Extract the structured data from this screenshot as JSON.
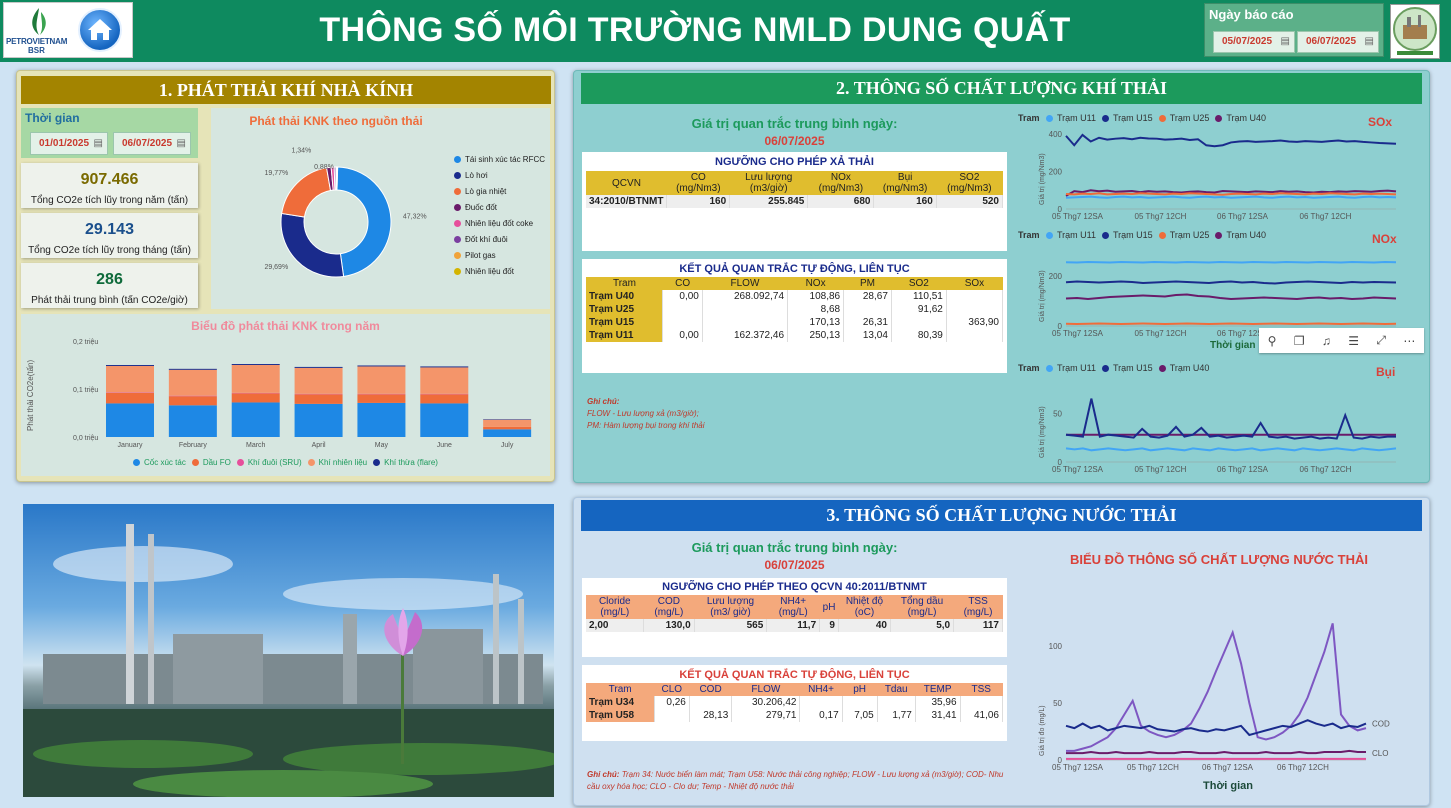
{
  "header": {
    "title": "THÔNG SỐ MÔI TRƯỜNG NMLD DUNG QUẤT",
    "logo_text_1": "PETROVIETNAM",
    "logo_text_2": "BSR",
    "report_date_label": "Ngày báo cáo",
    "date_from": "05/07/2025",
    "date_to": "06/07/2025"
  },
  "s1": {
    "title": "1. PHÁT THẢI KHÍ NHÀ KÍNH",
    "period_label": "Thời gian",
    "date_from": "01/01/2025",
    "date_to": "06/07/2025",
    "kpis": [
      {
        "value": "907.466",
        "label": "Tổng CO2e tích lũy trong năm (tấn)"
      },
      {
        "value": "29.143",
        "label": "Tổng CO2e tích lũy trong tháng (tấn)"
      },
      {
        "value": "286",
        "label": "Phát thải trung bình (tấn CO2e/giờ)"
      }
    ],
    "donut_title": "Phát thải KNK theo nguồn thải",
    "donut_legend": [
      "Tái sinh xúc tác RFCC",
      "Lò hơi",
      "Lò gia nhiệt",
      "Đuốc đốt",
      "Nhiên liệu đốt coke",
      "Đốt khí đuôi",
      "Pilot gas",
      "Nhiên liệu đốt"
    ],
    "bar_title": "Biểu đồ phát thải KNK trong năm",
    "bar_legend": [
      "Cốc xúc tác",
      "Dầu FO",
      "Khí đuôi (SRU)",
      "Khí nhiên liệu",
      "Khí thừa (flare)"
    ]
  },
  "s2": {
    "title": "2. THÔNG SỐ CHẤT LƯỢNG KHÍ THẢI",
    "avg_label": "Giá trị quan trắc trung bình ngày:",
    "avg_date": "06/07/2025",
    "limit_title": "NGƯỠNG CHO PHÉP XẢ THẢI",
    "limit_headers": [
      "QCVN",
      "CO (mg/Nm3)",
      "Lưu lượng (m3/giờ)",
      "NOx (mg/Nm3)",
      "Bụi (mg/Nm3)",
      "SO2 (mg/Nm3)"
    ],
    "limit_row": [
      "34:2010/BTNMT",
      "160",
      "255.845",
      "680",
      "160",
      "520"
    ],
    "result_title": "KẾT QUẢ QUAN TRẮC TỰ ĐỘNG, LIÊN TỤC",
    "result_headers": [
      "Tram",
      "CO",
      "FLOW",
      "NOx",
      "PM",
      "SO2",
      "SOx"
    ],
    "result_rows": [
      [
        "Trạm U40",
        "0,00",
        "268.092,74",
        "108,86",
        "28,67",
        "110,51",
        ""
      ],
      [
        "Trạm U25",
        "",
        "",
        "8,68",
        "",
        "91,62",
        ""
      ],
      [
        "Trạm U15",
        "",
        "",
        "170,13",
        "26,31",
        "",
        "363,90"
      ],
      [
        "Trạm U11",
        "0,00",
        "162.372,46",
        "250,13",
        "13,04",
        "80,39",
        ""
      ]
    ],
    "note_title": "Ghi chú:",
    "note_1": "FLOW - Lưu lượng xả (m3/giờ);",
    "note_2": "PM: Hàm lượng bụi trong khí thải",
    "legend_prefix": "Tram",
    "sox": {
      "title": "SOx",
      "legend": [
        "Trạm U11",
        "Trạm U15",
        "Trạm U25",
        "Trạm U40"
      ],
      "yticks": [
        "400",
        "200",
        "0"
      ],
      "xticks": [
        "05 Thg7 12SA",
        "05 Thg7 12CH",
        "06 Thg7 12SA",
        "06 Thg7 12CH"
      ]
    },
    "nox": {
      "title": "NOx",
      "legend": [
        "Trạm U11",
        "Trạm U15",
        "Trạm U25",
        "Trạm U40"
      ],
      "yticks": [
        "200",
        "0"
      ],
      "xticks": [
        "05 Thg7 12SA",
        "05 Thg7 12CH",
        "06 Thg7 12SA",
        "06 Thg7 12CH"
      ]
    },
    "pm": {
      "title": "Bụi",
      "legend": [
        "Trạm U11",
        "Trạm U15",
        "Trạm U40"
      ],
      "yticks": [
        "50",
        "0"
      ],
      "xticks": [
        "05 Thg7 12SA",
        "05 Thg7 12CH",
        "06 Thg7 12SA",
        "06 Thg7 12CH"
      ]
    },
    "y_label": "Giá trị (mg/Nm3)",
    "x_label": "Thời gian"
  },
  "s3": {
    "title": "3. THÔNG SỐ CHẤT LƯỢNG NƯỚC THẢI",
    "avg_label": "Giá trị quan trắc trung bình ngày:",
    "avg_date": "06/07/2025",
    "limit_title": "NGƯỠNG CHO PHÉP THEO QCVN 40:2011/BTNMT",
    "limit_headers": [
      "Cloride (mg/L)",
      "COD (mg/L)",
      "Lưu lượng (m3/ giờ)",
      "NH4+ (mg/L)",
      "pH",
      "Nhiệt độ (oC)",
      "Tổng dầu (mg/L)",
      "TSS (mg/L)"
    ],
    "limit_row": [
      "2,00",
      "130,0",
      "565",
      "11,7",
      "9",
      "40",
      "5,0",
      "117"
    ],
    "result_title": "KẾT QUẢ QUAN TRẮC TỰ ĐỘNG, LIÊN TỤC",
    "result_headers": [
      "Tram",
      "CLO",
      "COD",
      "FLOW",
      "NH4+",
      "pH",
      "Tdau",
      "TEMP",
      "TSS"
    ],
    "result_rows": [
      [
        "Trạm U34",
        "0,26",
        "",
        "30.206,42",
        "",
        "",
        "",
        "35,96",
        ""
      ],
      [
        "Trạm U58",
        "",
        "28,13",
        "279,71",
        "0,17",
        "7,05",
        "1,77",
        "31,41",
        "41,06"
      ]
    ],
    "note_title": "Ghi chú:",
    "note_text": "Trạm 34: Nước biển làm mát; Trạm U58: Nước thải công nghiệp; FLOW - Lưu lượng xả (m3/giờ);  COD- Nhu cầu oxy hóa học; CLO - Clo dư; Temp - Nhiệt độ nước thải",
    "chart_title": "BIỂU ĐỒ THÔNG SỐ CHẤT LƯỢNG NƯỚC THẢI",
    "y_label": "Giá trị đo (mg/L)",
    "x_label": "Thời gian",
    "yticks": [
      "100",
      "50",
      "0"
    ],
    "xticks": [
      "05 Thg7 12SA",
      "05 Thg7 12CH",
      "06 Thg7 12SA",
      "06 Thg7 12CH"
    ],
    "series_labels": [
      "COD",
      "CLO"
    ]
  },
  "chart_data": [
    {
      "type": "pie",
      "title": "Phát thải KNK theo nguồn thải",
      "categories": [
        "Tái sinh xúc tác RFCC",
        "Lò hơi",
        "Lò gia nhiệt",
        "Đuốc đốt",
        "Nhiên liệu đốt coke",
        "Đốt khí đuôi",
        "Pilot gas",
        "Nhiên liệu đốt"
      ],
      "values": [
        47.32,
        29.69,
        19.77,
        1.34,
        0.88,
        0.5,
        0.3,
        0.2
      ],
      "labels": [
        "47,32%",
        "29,69%",
        "19,77%",
        "1,34%",
        "0,88%"
      ],
      "colors": [
        "#1e88e5",
        "#1a2b8c",
        "#ef6c3a",
        "#6a1b6a",
        "#e64f9b",
        "#7b3fa0",
        "#f0a33a",
        "#d4b400"
      ]
    },
    {
      "type": "bar",
      "title": "Biểu đồ phát thải KNK trong năm",
      "ylabel": "Phát thải CO2e(tấn)",
      "yticks": [
        "0,2 triệu",
        "0,1 triệu",
        "0,0 triệu"
      ],
      "ylim": [
        0,
        0.2
      ],
      "categories": [
        "January",
        "February",
        "March",
        "April",
        "May",
        "June",
        "July"
      ],
      "series": [
        {
          "name": "Cốc xúc tác",
          "color": "#1e88e5",
          "values": [
            0.07,
            0.066,
            0.072,
            0.069,
            0.071,
            0.07,
            0.016
          ]
        },
        {
          "name": "Dầu FO",
          "color": "#ef6c3a",
          "values": [
            0.022,
            0.019,
            0.019,
            0.02,
            0.018,
            0.019,
            0.005
          ]
        },
        {
          "name": "Khí đuôi (SRU)",
          "color": "#e64f9b",
          "values": [
            0.001,
            0.001,
            0.001,
            0.001,
            0.001,
            0.001,
            0.0
          ]
        },
        {
          "name": "Khí nhiên liệu",
          "color": "#f4956a",
          "values": [
            0.055,
            0.054,
            0.058,
            0.054,
            0.057,
            0.055,
            0.015
          ]
        },
        {
          "name": "Khí thừa (flare)",
          "color": "#1a2b8c",
          "values": [
            0.002,
            0.002,
            0.002,
            0.002,
            0.002,
            0.002,
            0.001
          ]
        }
      ]
    },
    {
      "type": "line",
      "title": "SOx",
      "ylim": [
        0,
        400
      ],
      "series": [
        {
          "name": "Trạm U15",
          "color": "#1a2b8c",
          "values": [
            390,
            340,
            395,
            360,
            380,
            370,
            375,
            378,
            372,
            380,
            376,
            375,
            370,
            372,
            375,
            368,
            372,
            340,
            335,
            340,
            355,
            360,
            362,
            358,
            360,
            362,
            365,
            360,
            358,
            362,
            360,
            358,
            362,
            365,
            360,
            362,
            358,
            355,
            352,
            350,
            348
          ]
        },
        {
          "name": "Trạm U40",
          "color": "#6a1b6a",
          "values": [
            70,
            95,
            90,
            100,
            95,
            98,
            92,
            94,
            96,
            90,
            95,
            92,
            94,
            90,
            88,
            92,
            94,
            90,
            88,
            96,
            94,
            92,
            90,
            94,
            92,
            90,
            95,
            92,
            94,
            90,
            88,
            92,
            90,
            94,
            92,
            95,
            94,
            92,
            96,
            98,
            94
          ]
        },
        {
          "name": "Trạm U25",
          "color": "#ef6c3a",
          "values": [
            80,
            78,
            82,
            80,
            84,
            78,
            80,
            82,
            80,
            84,
            82,
            80,
            78,
            82,
            80,
            84,
            82,
            80,
            78,
            76,
            80,
            82,
            80,
            78,
            82,
            80,
            84,
            82,
            80,
            78,
            82,
            80,
            84,
            82,
            80,
            78,
            82,
            80,
            82,
            80,
            78
          ]
        },
        {
          "name": "Trạm U11",
          "color": "#42a5f5",
          "values": [
            60,
            62,
            64,
            66,
            62,
            60,
            64,
            66,
            62,
            64,
            60,
            62,
            64,
            66,
            62,
            60,
            64,
            66,
            62,
            64,
            60,
            62,
            64,
            66,
            62,
            60,
            64,
            66,
            62,
            64,
            60,
            62,
            64,
            66,
            62,
            60,
            64,
            66,
            62,
            64,
            62
          ]
        }
      ]
    },
    {
      "type": "line",
      "title": "NOx",
      "ylim": [
        0,
        300
      ],
      "series": [
        {
          "name": "Trạm U11",
          "color": "#42a5f5",
          "values": [
            255,
            254,
            256,
            255,
            254,
            256,
            255,
            254,
            256,
            255,
            254,
            256,
            255,
            254,
            256,
            255,
            254,
            256,
            255,
            254,
            256,
            255,
            254,
            256,
            255,
            254,
            256,
            255,
            254,
            256,
            255
          ]
        },
        {
          "name": "Trạm U15",
          "color": "#1a2b8c",
          "values": [
            175,
            178,
            176,
            174,
            176,
            178,
            176,
            172,
            174,
            176,
            178,
            176,
            174,
            172,
            176,
            178,
            174,
            176,
            172,
            170,
            174,
            176,
            178,
            176,
            174,
            172,
            176,
            174,
            176,
            175,
            174
          ]
        },
        {
          "name": "Trạm U40",
          "color": "#6a1b6a",
          "values": [
            110,
            112,
            108,
            112,
            116,
            118,
            120,
            122,
            120,
            118,
            124,
            126,
            120,
            118,
            112,
            108,
            110,
            112,
            114,
            112,
            110,
            108,
            112,
            114,
            110,
            112,
            108,
            110,
            114,
            112,
            110
          ]
        },
        {
          "name": "Trạm U25",
          "color": "#ef6c3a",
          "values": [
            9,
            8,
            9,
            10,
            9,
            8,
            9,
            10,
            9,
            8,
            9,
            10,
            9,
            8,
            9,
            10,
            9,
            8,
            9,
            10,
            9,
            8,
            9,
            10,
            9,
            8,
            9,
            10,
            9,
            8,
            9
          ]
        }
      ]
    },
    {
      "type": "line",
      "title": "Bụi",
      "ylim": [
        0,
        80
      ],
      "series": [
        {
          "name": "Trạm U40",
          "color": "#6a1b6a",
          "values": [
            28,
            28,
            28,
            28,
            28,
            28,
            28,
            28,
            28,
            28,
            28,
            28,
            28,
            28,
            28,
            28,
            28,
            28,
            28,
            28,
            28,
            28,
            28,
            28,
            28,
            28,
            28,
            28,
            28,
            28,
            28,
            28,
            28,
            28,
            28,
            28,
            28,
            28,
            28,
            28
          ]
        },
        {
          "name": "Trạm U15",
          "color": "#1a2b8c",
          "values": [
            28,
            27,
            26,
            65,
            26,
            28,
            27,
            26,
            25,
            34,
            26,
            25,
            27,
            36,
            26,
            28,
            35,
            26,
            27,
            25,
            26,
            27,
            26,
            40,
            26,
            25,
            26,
            24,
            25,
            26,
            24,
            25,
            24,
            48,
            25,
            24,
            26,
            25,
            26,
            26
          ]
        },
        {
          "name": "Trạm U11",
          "color": "#42a5f5",
          "values": [
            14,
            13,
            14,
            12,
            13,
            14,
            13,
            12,
            13,
            14,
            12,
            13,
            14,
            13,
            12,
            14,
            13,
            12,
            14,
            13,
            12,
            13,
            14,
            12,
            13,
            14,
            13,
            12,
            14,
            13,
            12,
            13,
            14,
            13,
            12,
            14,
            13,
            12,
            13,
            14
          ]
        }
      ]
    },
    {
      "type": "line",
      "title": "BIỂU ĐỒ THÔNG SỐ CHẤT LƯỢNG NƯỚC THẢI",
      "ylim": [
        0,
        130
      ],
      "series": [
        {
          "name": "",
          "color": "#7e57c2",
          "values": [
            8,
            8,
            10,
            12,
            16,
            20,
            28,
            40,
            52,
            30,
            25,
            22,
            20,
            22,
            26,
            32,
            45,
            60,
            78,
            95,
            112,
            85,
            50,
            20,
            18,
            20,
            24,
            30,
            40,
            55,
            75,
            95,
            120,
            40,
            30,
            26,
            28
          ]
        },
        {
          "name": "COD",
          "color": "#1a2b8c",
          "values": [
            30,
            28,
            32,
            28,
            30,
            26,
            28,
            30,
            29,
            28,
            30,
            27,
            26,
            25,
            27,
            28,
            26,
            25,
            27,
            26,
            28,
            30,
            22,
            24,
            26,
            28,
            30,
            29,
            32,
            35,
            32,
            30,
            32,
            28,
            30,
            29,
            32
          ]
        },
        {
          "name": "CLO",
          "color": "#6a1b6a",
          "values": [
            6,
            6,
            6,
            7,
            6,
            6,
            7,
            6,
            6,
            6,
            7,
            6,
            6,
            6,
            7,
            7,
            6,
            6,
            6,
            7,
            6,
            6,
            6,
            6,
            7,
            6,
            6,
            6,
            7,
            6,
            6,
            7,
            7,
            7,
            8,
            7,
            7
          ]
        },
        {
          "name": "",
          "color": "#e64f9b",
          "values": [
            1,
            1,
            1,
            1,
            1,
            1,
            1,
            1,
            1,
            1,
            1,
            1,
            1,
            1,
            1,
            1,
            1,
            1,
            1,
            1,
            1,
            1,
            1,
            1,
            1,
            1,
            1,
            1,
            1,
            1,
            1,
            1,
            1,
            1,
            1,
            1,
            1
          ]
        }
      ]
    }
  ]
}
